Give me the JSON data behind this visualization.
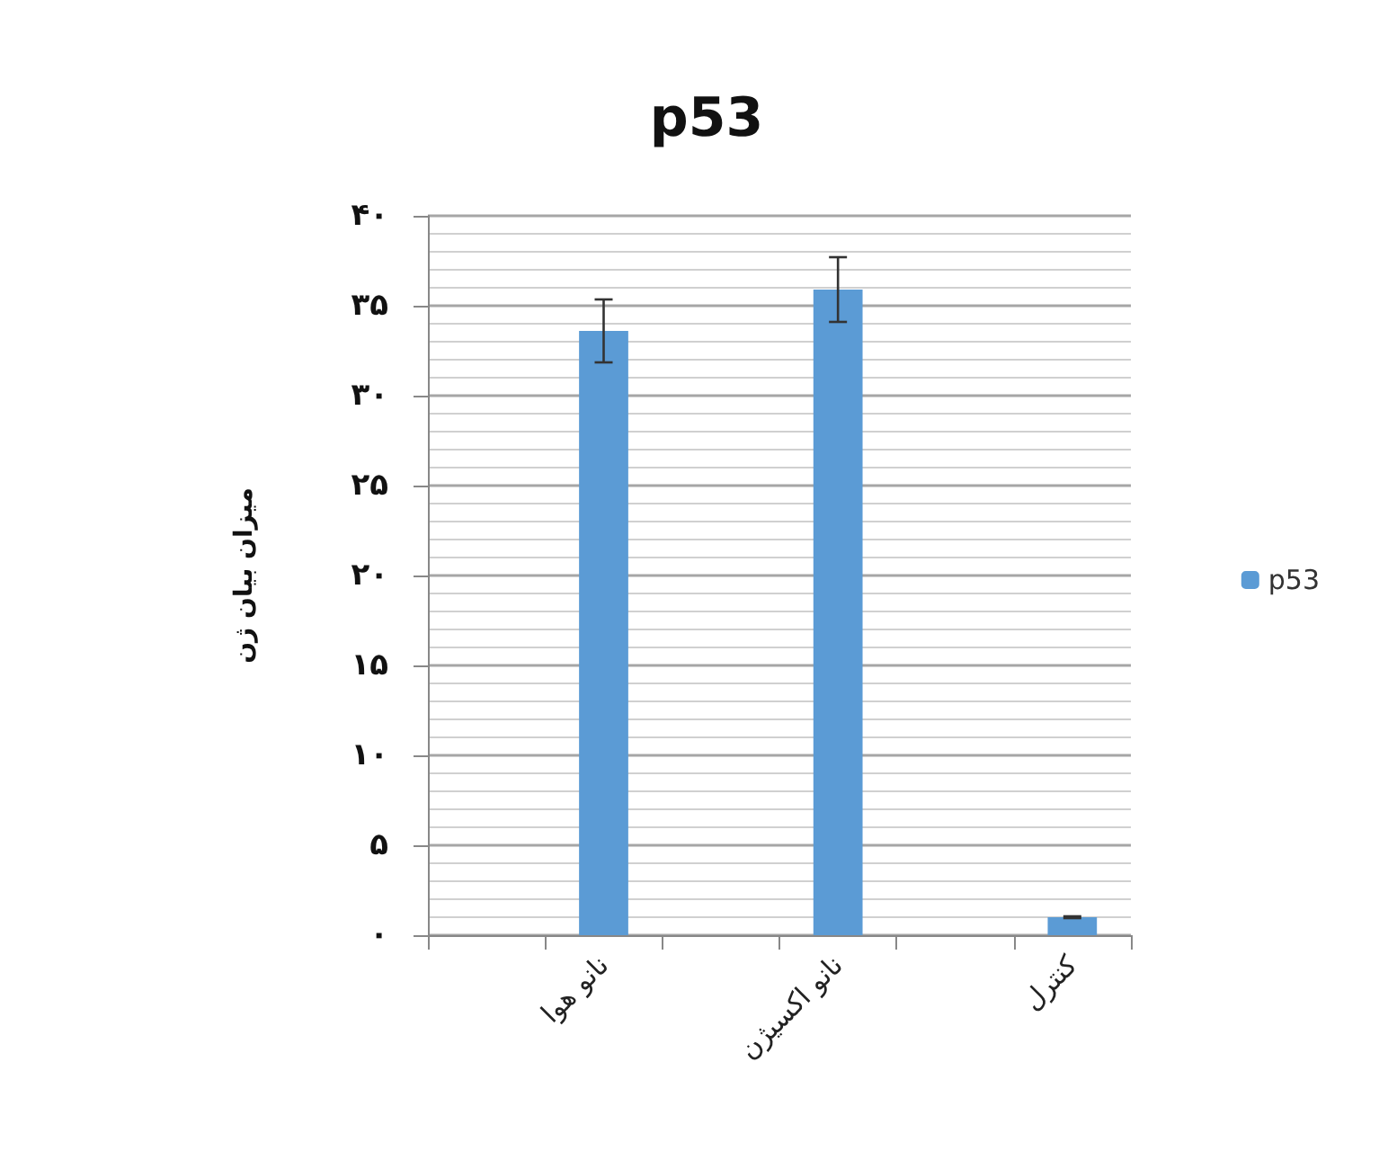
{
  "chart_data": {
    "type": "bar",
    "title": "p53",
    "ylabel": "میزان بیان ژن",
    "categories": [
      null,
      "نانو هوا",
      null,
      "نانو اکسیژن",
      null,
      "کنترل"
    ],
    "series": [
      {
        "name": "p53",
        "color": "#5b9bd5",
        "values": [
          null,
          33.6,
          null,
          35.9,
          null,
          1.0
        ],
        "errors": [
          null,
          1.75,
          null,
          1.8,
          null,
          0.05
        ]
      }
    ],
    "ylim": [
      0,
      40
    ],
    "yticks": [
      {
        "value": 0,
        "label": "۰"
      },
      {
        "value": 1,
        "label": null
      },
      {
        "value": 2,
        "label": null
      },
      {
        "value": 3,
        "label": null
      },
      {
        "value": 4,
        "label": null
      },
      {
        "value": 5,
        "label": "۵"
      },
      {
        "value": 6,
        "label": null
      },
      {
        "value": 7,
        "label": null
      },
      {
        "value": 8,
        "label": null
      },
      {
        "value": 9,
        "label": null
      },
      {
        "value": 10,
        "label": "۱۰"
      },
      {
        "value": 11,
        "label": null
      },
      {
        "value": 12,
        "label": null
      },
      {
        "value": 13,
        "label": null
      },
      {
        "value": 14,
        "label": null
      },
      {
        "value": 15,
        "label": "۱۵"
      },
      {
        "value": 16,
        "label": null
      },
      {
        "value": 17,
        "label": null
      },
      {
        "value": 18,
        "label": null
      },
      {
        "value": 19,
        "label": null
      },
      {
        "value": 20,
        "label": "۲۰"
      },
      {
        "value": 21,
        "label": null
      },
      {
        "value": 22,
        "label": null
      },
      {
        "value": 23,
        "label": null
      },
      {
        "value": 24,
        "label": null
      },
      {
        "value": 25,
        "label": "۲۵"
      },
      {
        "value": 26,
        "label": null
      },
      {
        "value": 27,
        "label": null
      },
      {
        "value": 28,
        "label": null
      },
      {
        "value": 29,
        "label": null
      },
      {
        "value": 30,
        "label": "۳۰"
      },
      {
        "value": 31,
        "label": null
      },
      {
        "value": 32,
        "label": null
      },
      {
        "value": 33,
        "label": null
      },
      {
        "value": 34,
        "label": null
      },
      {
        "value": 35,
        "label": "۳۵"
      },
      {
        "value": 36,
        "label": null
      },
      {
        "value": 37,
        "label": null
      },
      {
        "value": 38,
        "label": null
      },
      {
        "value": 39,
        "label": null
      },
      {
        "value": 40,
        "label": "۴۰"
      }
    ],
    "grid": "y",
    "legend": "right"
  }
}
